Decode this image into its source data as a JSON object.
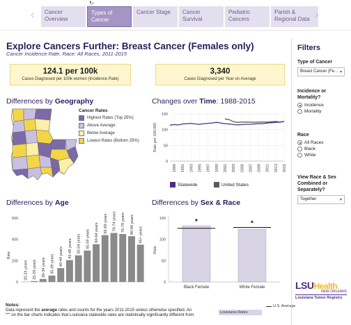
{
  "nav": {
    "refresh_glyph": "↻",
    "tabs": [
      {
        "label": "Cancer Overview",
        "active": false
      },
      {
        "label": "Types of Cancer",
        "active": true
      },
      {
        "label": "Cancer Stage",
        "active": false
      },
      {
        "label": "Cancer Survival",
        "active": false
      },
      {
        "label": "Pediatric Cancers",
        "active": false
      },
      {
        "label": "Parish & Regional Data",
        "active": false
      }
    ]
  },
  "header": {
    "title": "Explore Cancers Further: Breast Cancer (Females only)",
    "subtitle": "Cancer Incidence Rate, Race: All Races, 2011-2015"
  },
  "stats": {
    "rate_value": "124.1 per 100k",
    "rate_label": "Cases Diagnosed per 100k women (Incidence Rate)",
    "count_value": "3,340",
    "count_label": "Cases Diagnosed per Year on Average"
  },
  "geography": {
    "heading_prefix": "Differences by ",
    "heading_bold": "Geography",
    "legend_title": "Cancer Rates",
    "legend": [
      {
        "label": "Highest Rates (Top 25%)",
        "color": "#7b6aa6"
      },
      {
        "label": "Above Average",
        "color": "#c9bfe0"
      },
      {
        "label": "Below Average",
        "color": "#fbf0a8"
      },
      {
        "label": "Lowest Rates (Bottom 25%)",
        "color": "#f3d548"
      }
    ]
  },
  "time": {
    "heading_prefix": "Changes over ",
    "heading_bold": "Time",
    "heading_suffix": ": 1988-2015",
    "legend_statewide": "Statewide",
    "legend_us": "United States",
    "statewide_color": "#4b2e83",
    "us_color": "#5a5a5a"
  },
  "age": {
    "heading_prefix": "Differences by ",
    "heading_bold": "Age"
  },
  "sexrace": {
    "heading_prefix": "Differences by ",
    "heading_bold": "Sex & Race",
    "legend_us_avg": "U.S. Average",
    "legend_la_rates": "Louisiana Rates"
  },
  "notes": {
    "heading": "Notes:",
    "line1_before": "Data represent the ",
    "line1_bold": "average",
    "line1_after": " rates and counts for the years 2011-2015 unless otherwise specified. An",
    "line2": "\"*\" on the bar charts indicates that Louisiana statewide rates are statistically significantly different from"
  },
  "filters": {
    "title": "Filters",
    "cancer_type_label": "Type of Cancer",
    "cancer_type_value": "Breast Cancer (Fe...",
    "measure_label": "Incidence or Mortality?",
    "measure_options": [
      {
        "label": "Incidence",
        "selected": true
      },
      {
        "label": "Mortality",
        "selected": false
      }
    ],
    "race_label": "Race",
    "race_options": [
      {
        "label": "All Races",
        "selected": true
      },
      {
        "label": "Black",
        "selected": false
      },
      {
        "label": "White",
        "selected": false
      }
    ],
    "view_label": "View Race & Sex Combined or Separately?",
    "view_value": "Together"
  },
  "logo": {
    "lsu": "LSU",
    "health": "Health",
    "city": "NEW ORLEANS",
    "registry": "Louisiana Tumor Registry"
  },
  "chart_data": [
    {
      "type": "line",
      "x": [
        1988,
        1989,
        1990,
        1991,
        1992,
        1993,
        1994,
        1995,
        1996,
        1997,
        1998,
        1999,
        2000,
        2001,
        2002,
        2003,
        2004,
        2005,
        2006,
        2007,
        2008,
        2009,
        2010,
        2011,
        2012,
        2013,
        2014,
        2015
      ],
      "series": [
        {
          "name": "Statewide",
          "values": [
            114,
            116,
            115,
            118,
            119,
            120,
            118,
            117,
            119,
            120,
            121,
            123,
            121,
            119,
            118,
            116,
            115,
            116,
            117,
            117,
            118,
            119,
            119,
            121,
            122,
            123,
            124,
            126
          ]
        },
        {
          "name": "United States",
          "values": [
            null,
            null,
            null,
            null,
            null,
            null,
            null,
            null,
            null,
            null,
            null,
            null,
            null,
            134,
            132,
            125,
            123,
            124,
            124,
            124,
            123,
            124,
            124,
            124,
            125,
            126,
            124,
            126
          ]
        }
      ],
      "ylabel": "Rate per 100,000",
      "yticks": [
        0,
        50,
        100,
        150
      ],
      "ylim": [
        0,
        150
      ],
      "xticks": [
        "1989",
        "1991",
        "1993",
        "1995",
        "1997",
        "1999",
        "2001",
        "2003",
        "2005",
        "2007",
        "2009",
        "2011",
        "2013",
        "2015"
      ]
    },
    {
      "type": "bar",
      "categories": [
        "20-24 years",
        "25-29 years",
        "30-34 years",
        "35-39 years",
        "40-44 years",
        "45-49 years",
        "50-54 years",
        "55-59 years",
        "60-64 years",
        "65-69 years",
        "70-74 years",
        "75-79 years",
        "80-84 years",
        "85+ years"
      ],
      "values": [
        2,
        8,
        28,
        60,
        130,
        205,
        250,
        295,
        355,
        440,
        460,
        450,
        430,
        350
      ],
      "ylabel": "Rate",
      "yticks": [
        0,
        200,
        400,
        600
      ],
      "ylim": [
        0,
        600
      ],
      "color": "#8a8a8a"
    },
    {
      "type": "bar",
      "categories": [
        "Black Female",
        "White Female"
      ],
      "values": [
        132,
        124
      ],
      "reference": {
        "name": "U.S. Average",
        "values": [
          126,
          128
        ]
      },
      "significant": [
        true,
        true
      ],
      "significance_marker": "*",
      "ylabel": "Rate",
      "yticks": [
        0,
        50,
        100,
        150
      ],
      "ylim": [
        0,
        150
      ],
      "color": "#d9d3e6"
    }
  ]
}
